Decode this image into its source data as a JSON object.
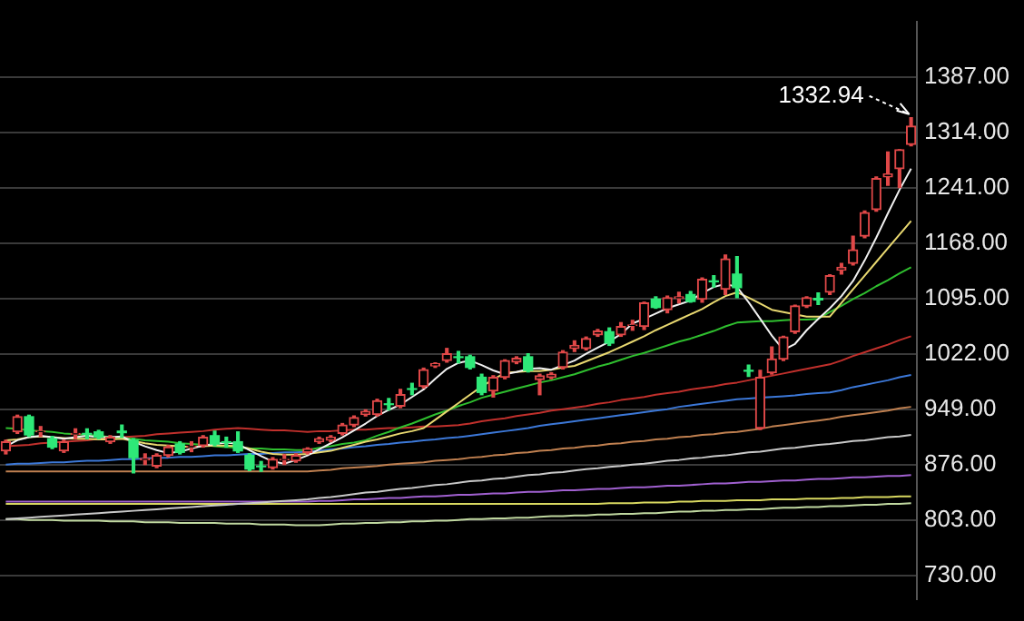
{
  "chart_data": {
    "type": "candlestick",
    "categories": [
      null,
      null,
      null,
      null,
      null,
      null,
      null,
      null,
      null,
      null,
      null,
      null,
      null,
      null,
      null,
      null,
      null,
      null,
      null,
      null,
      null,
      null,
      null,
      null,
      null,
      null,
      null,
      null,
      null,
      null,
      null,
      null,
      null,
      null,
      null,
      null,
      null,
      null,
      null,
      null,
      null,
      null,
      null,
      null,
      null,
      null,
      null,
      null,
      null,
      null,
      null,
      null,
      null,
      null,
      null,
      null,
      null,
      null,
      null,
      null,
      null,
      null,
      null,
      null,
      null,
      null,
      null,
      null,
      null,
      null,
      null,
      null,
      null,
      null,
      null,
      null,
      null,
      null,
      null
    ],
    "ohlc": [
      [
        894,
        908,
        890,
        906
      ],
      [
        919,
        941,
        917,
        939
      ],
      [
        939,
        941,
        913,
        915
      ],
      [
        919,
        926,
        913,
        920
      ],
      [
        910,
        913,
        897,
        899
      ],
      [
        894,
        908,
        892,
        906
      ],
      [
        916,
        923,
        910,
        917
      ],
      [
        917,
        923,
        910,
        916
      ],
      [
        919,
        921,
        910,
        912
      ],
      [
        906,
        914,
        904,
        912
      ],
      [
        920,
        928,
        912,
        918
      ],
      [
        908,
        910,
        865,
        885
      ],
      [
        882,
        890,
        876,
        884
      ],
      [
        874,
        890,
        872,
        888
      ],
      [
        888,
        901,
        886,
        899
      ],
      [
        903,
        906,
        890,
        892
      ],
      [
        899,
        906,
        893,
        900
      ],
      [
        901,
        914,
        899,
        912
      ],
      [
        914,
        920,
        901,
        903
      ],
      [
        906,
        912,
        899,
        905
      ],
      [
        906,
        919,
        892,
        894
      ],
      [
        888,
        890,
        868,
        870
      ],
      [
        874,
        880,
        867,
        873
      ],
      [
        872,
        885,
        870,
        883
      ],
      [
        882,
        889,
        876,
        883
      ],
      [
        881,
        890,
        879,
        888
      ],
      [
        892,
        898,
        890,
        897
      ],
      [
        906,
        912,
        904,
        910
      ],
      [
        908,
        914,
        906,
        912
      ],
      [
        917,
        930,
        915,
        928
      ],
      [
        928,
        940,
        926,
        938
      ],
      [
        942,
        948,
        940,
        946
      ],
      [
        942,
        962,
        940,
        960
      ],
      [
        956,
        963,
        948,
        955
      ],
      [
        953,
        975,
        951,
        968
      ],
      [
        976,
        983,
        968,
        975
      ],
      [
        979,
        1003,
        977,
        1001
      ],
      [
        1006,
        1010,
        1004,
        1009
      ],
      [
        1013,
        1029,
        1011,
        1022
      ],
      [
        1018,
        1025,
        1010,
        1017
      ],
      [
        1018,
        1020,
        1002,
        1004
      ],
      [
        991,
        995,
        968,
        971
      ],
      [
        973,
        993,
        965,
        991
      ],
      [
        991,
        1014,
        989,
        1013
      ],
      [
        1011,
        1018,
        1009,
        1016
      ],
      [
        1018,
        1022,
        998,
        1000
      ],
      [
        988,
        995,
        968,
        993
      ],
      [
        991,
        997,
        989,
        995
      ],
      [
        1004,
        1026,
        1002,
        1024
      ],
      [
        1029,
        1039,
        1025,
        1033
      ],
      [
        1029,
        1044,
        1027,
        1042
      ],
      [
        1047,
        1054,
        1045,
        1052
      ],
      [
        1051,
        1056,
        1033,
        1036
      ],
      [
        1047,
        1063,
        1045,
        1058
      ],
      [
        1059,
        1066,
        1053,
        1060
      ],
      [
        1058,
        1090,
        1054,
        1089
      ],
      [
        1094,
        1097,
        1082,
        1083
      ],
      [
        1080,
        1098,
        1076,
        1096
      ],
      [
        1095,
        1103,
        1089,
        1097
      ],
      [
        1100,
        1104,
        1090,
        1091
      ],
      [
        1094,
        1122,
        1090,
        1120
      ],
      [
        1118,
        1125,
        1110,
        1117
      ],
      [
        1107,
        1152,
        1100,
        1147
      ],
      [
        1127,
        1150,
        1096,
        1109
      ],
      [
        1000,
        1007,
        992,
        999
      ],
      [
        924,
        1000,
        922,
        991
      ],
      [
        997,
        1031,
        995,
        1015
      ],
      [
        1015,
        1045,
        1013,
        1044
      ],
      [
        1051,
        1086,
        1049,
        1085
      ],
      [
        1085,
        1097,
        1083,
        1096
      ],
      [
        1095,
        1102,
        1087,
        1093
      ],
      [
        1103,
        1126,
        1100,
        1125
      ],
      [
        1132,
        1141,
        1127,
        1136
      ],
      [
        1141,
        1177,
        1139,
        1159
      ],
      [
        1177,
        1210,
        1175,
        1208
      ],
      [
        1212,
        1255,
        1210,
        1253
      ],
      [
        1255,
        1288,
        1244,
        1259
      ],
      [
        1266,
        1291,
        1241,
        1291
      ],
      [
        1298,
        1332.94,
        1296,
        1322
      ]
    ],
    "colors": [
      "#e04848",
      "#e04848",
      "#2ee878",
      "#e04848",
      "#2ee878",
      "#e04848",
      "#e04848",
      "#2ee878",
      "#2ee878",
      "#e04848",
      "#2ee878",
      "#2ee878",
      "#e04848",
      "#e04848",
      "#e04848",
      "#2ee878",
      "#e04848",
      "#e04848",
      "#2ee878",
      "#2ee878",
      "#2ee878",
      "#2ee878",
      "#2ee878",
      "#e04848",
      "#e04848",
      "#e04848",
      "#e04848",
      "#e04848",
      "#e04848",
      "#e04848",
      "#e04848",
      "#e04848",
      "#e04848",
      "#2ee878",
      "#e04848",
      "#2ee878",
      "#e04848",
      "#e04848",
      "#e04848",
      "#2ee878",
      "#2ee878",
      "#2ee878",
      "#e04848",
      "#e04848",
      "#e04848",
      "#2ee878",
      "#e04848",
      "#e04848",
      "#e04848",
      "#e04848",
      "#e04848",
      "#e04848",
      "#2ee878",
      "#e04848",
      "#e04848",
      "#e04848",
      "#2ee878",
      "#e04848",
      "#e04848",
      "#2ee878",
      "#e04848",
      "#2ee878",
      "#e04848",
      "#2ee878",
      "#2ee878",
      "#e04848",
      "#e04848",
      "#e04848",
      "#e04848",
      "#e04848",
      "#2ee878",
      "#e04848",
      "#e04848",
      "#e04848",
      "#e04848",
      "#e04848",
      "#e04848",
      "#e04848",
      "#e04848"
    ],
    "series": [
      {
        "type": "line",
        "color": "#f0f0f0",
        "values": [
          900,
          908,
          912,
          914,
          912,
          910,
          912,
          914,
          912,
          912,
          913,
          906,
          900,
          895,
          891,
          893,
          897,
          901,
          903,
          905,
          903,
          895,
          887,
          880,
          877,
          882,
          888,
          896,
          904,
          912,
          921,
          930,
          940,
          948,
          955,
          965,
          975,
          989,
          1002,
          1010,
          1013,
          1007,
          1000,
          995,
          998,
          1002,
          1003,
          1001,
          1007,
          1013,
          1022,
          1030,
          1038,
          1048,
          1062,
          1068,
          1075,
          1082,
          1087,
          1092,
          1102,
          1110,
          1114,
          1110,
          1090,
          1068,
          1046,
          1027,
          1035,
          1053,
          1068,
          1082,
          1098,
          1118,
          1145,
          1175,
          1207,
          1238,
          1266
        ]
      },
      {
        "type": "line",
        "color": "#e8d870",
        "values": [
          908,
          909,
          912,
          913,
          912,
          911,
          910,
          910,
          909,
          909,
          910,
          907,
          904,
          902,
          901,
          900,
          899,
          900,
          901,
          901,
          900,
          897,
          893,
          890,
          889,
          889,
          890,
          892,
          894,
          898,
          902,
          906,
          909,
          913,
          917,
          920,
          924,
          935,
          946,
          957,
          968,
          979,
          988,
          997,
          998,
          999,
          999,
          1001,
          1004,
          1006,
          1012,
          1018,
          1024,
          1031,
          1038,
          1045,
          1053,
          1060,
          1067,
          1074,
          1081,
          1090,
          1098,
          1103,
          1096,
          1088,
          1080,
          1077,
          1074,
          1071,
          1071,
          1071,
          1089,
          1107,
          1125,
          1143,
          1161,
          1179,
          1197
        ]
      },
      {
        "type": "line",
        "color": "#2fbf2f",
        "values": [
          924,
          923,
          921,
          920,
          919,
          917,
          916,
          915,
          914,
          912,
          911,
          910,
          908,
          907,
          906,
          904,
          903,
          902,
          900,
          899,
          898,
          897,
          897,
          896,
          896,
          895,
          895,
          898,
          900,
          903,
          905,
          908,
          914,
          919,
          925,
          930,
          936,
          942,
          947,
          953,
          958,
          964,
          968,
          972,
          976,
          980,
          984,
          987,
          991,
          995,
          1000,
          1005,
          1009,
          1014,
          1019,
          1023,
          1028,
          1033,
          1038,
          1042,
          1047,
          1052,
          1058,
          1063,
          1064,
          1065,
          1065,
          1066,
          1067,
          1067,
          1068,
          1077,
          1085,
          1094,
          1102,
          1111,
          1119,
          1128,
          1136
        ]
      },
      {
        "type": "line",
        "color": "#c0302c",
        "values": [
          900,
          901,
          902,
          904,
          905,
          906,
          907,
          908,
          910,
          911,
          912,
          913,
          914,
          916,
          917,
          918,
          919,
          920,
          922,
          923,
          924,
          923,
          922,
          921,
          921,
          920,
          919,
          920,
          920,
          921,
          922,
          922,
          923,
          924,
          924,
          925,
          926,
          926,
          927,
          928,
          930,
          933,
          935,
          937,
          940,
          942,
          944,
          947,
          949,
          951,
          953,
          956,
          958,
          961,
          963,
          965,
          968,
          970,
          972,
          975,
          977,
          979,
          982,
          984,
          987,
          990,
          993,
          996,
          999,
          1002,
          1005,
          1008,
          1013,
          1019,
          1024,
          1029,
          1034,
          1040,
          1045
        ]
      },
      {
        "type": "line",
        "color": "#3c78d8",
        "values": [
          876,
          877,
          877,
          878,
          879,
          879,
          880,
          881,
          881,
          882,
          883,
          883,
          884,
          885,
          885,
          886,
          886,
          887,
          888,
          888,
          889,
          890,
          890,
          891,
          892,
          892,
          893,
          894,
          896,
          897,
          899,
          900,
          902,
          903,
          905,
          906,
          908,
          909,
          911,
          912,
          914,
          916,
          918,
          920,
          922,
          924,
          927,
          929,
          931,
          933,
          935,
          937,
          939,
          941,
          943,
          945,
          947,
          949,
          952,
          954,
          956,
          958,
          960,
          962,
          963,
          964,
          965,
          966,
          967,
          969,
          970,
          971,
          974,
          978,
          981,
          984,
          987,
          991,
          994
        ]
      },
      {
        "type": "line",
        "color": "#c08050",
        "values": [
          867,
          867,
          867,
          867,
          867,
          867,
          867,
          867,
          867,
          867,
          867,
          867,
          867,
          867,
          867,
          867,
          867,
          867,
          867,
          867,
          867,
          867,
          867,
          867,
          867,
          867,
          867,
          868,
          869,
          871,
          872,
          873,
          874,
          876,
          877,
          878,
          879,
          881,
          882,
          883,
          885,
          886,
          888,
          889,
          891,
          892,
          894,
          895,
          897,
          898,
          900,
          901,
          903,
          904,
          906,
          907,
          909,
          910,
          912,
          913,
          915,
          916,
          918,
          919,
          921,
          923,
          926,
          928,
          930,
          932,
          934,
          936,
          939,
          941,
          943,
          945,
          947,
          950,
          952
        ]
      },
      {
        "type": "line",
        "color": "#c8c8c8",
        "values": [
          804,
          805,
          806,
          807,
          808,
          809,
          810,
          811,
          812,
          813,
          814,
          815,
          816,
          817,
          818,
          819,
          820,
          821,
          822,
          823,
          824,
          825,
          826,
          827,
          828,
          829,
          830,
          832,
          833,
          835,
          837,
          839,
          840,
          842,
          844,
          845,
          847,
          849,
          850,
          852,
          854,
          855,
          857,
          858,
          860,
          862,
          863,
          865,
          866,
          868,
          870,
          871,
          873,
          874,
          876,
          877,
          879,
          881,
          882,
          884,
          885,
          887,
          888,
          890,
          892,
          893,
          895,
          897,
          898,
          900,
          902,
          903,
          905,
          907,
          908,
          910,
          912,
          913,
          915
        ]
      },
      {
        "type": "line",
        "color": "#a060d0",
        "values": [
          827,
          827,
          827,
          827,
          827,
          827,
          827,
          827,
          827,
          827,
          827,
          827,
          827,
          827,
          827,
          827,
          827,
          827,
          827,
          827,
          827,
          827,
          827,
          827,
          827,
          827,
          827,
          828,
          828,
          829,
          830,
          830,
          831,
          832,
          832,
          833,
          834,
          834,
          835,
          836,
          836,
          837,
          838,
          838,
          839,
          840,
          840,
          841,
          842,
          842,
          843,
          844,
          844,
          845,
          846,
          846,
          847,
          848,
          848,
          849,
          850,
          851,
          851,
          852,
          853,
          853,
          854,
          855,
          855,
          856,
          857,
          857,
          858,
          859,
          859,
          860,
          861,
          861,
          862
        ]
      },
      {
        "type": "line",
        "color": "#d8d860",
        "values": [
          824,
          824,
          824,
          824,
          824,
          824,
          824,
          824,
          824,
          824,
          824,
          824,
          824,
          824,
          824,
          824,
          824,
          824,
          824,
          824,
          824,
          824,
          824,
          824,
          824,
          824,
          824,
          824,
          824,
          824,
          824,
          824,
          824,
          824,
          824,
          824,
          824,
          824,
          824,
          824,
          824,
          824,
          824,
          824,
          824,
          824,
          824,
          824,
          824,
          824,
          824,
          824,
          825,
          825,
          825,
          826,
          826,
          826,
          827,
          827,
          828,
          828,
          828,
          829,
          829,
          829,
          830,
          830,
          830,
          831,
          831,
          831,
          832,
          832,
          833,
          833,
          833,
          834,
          834
        ]
      },
      {
        "type": "line",
        "color": "#c0d8a0",
        "values": [
          804,
          804,
          803,
          803,
          803,
          802,
          802,
          802,
          802,
          801,
          801,
          801,
          800,
          800,
          800,
          799,
          799,
          799,
          799,
          798,
          798,
          798,
          797,
          797,
          797,
          796,
          796,
          796,
          797,
          798,
          798,
          799,
          799,
          800,
          800,
          801,
          801,
          802,
          802,
          803,
          804,
          804,
          805,
          805,
          806,
          806,
          807,
          808,
          808,
          809,
          809,
          810,
          810,
          811,
          811,
          812,
          812,
          813,
          814,
          814,
          815,
          815,
          816,
          816,
          817,
          817,
          818,
          819,
          819,
          820,
          820,
          821,
          821,
          822,
          823,
          823,
          824,
          824,
          825
        ]
      }
    ],
    "ylim": [
      698,
      1460
    ],
    "yticks": [
      {
        "value": 730,
        "label": "730.00"
      },
      {
        "value": 803,
        "label": "803.00"
      },
      {
        "value": 876,
        "label": "876.00"
      },
      {
        "value": 949,
        "label": "949.00"
      },
      {
        "value": 1022,
        "label": "1022.00"
      },
      {
        "value": 1095,
        "label": "1095.00"
      },
      {
        "value": 1168,
        "label": "1168.00"
      },
      {
        "value": 1241,
        "label": "1241.00"
      },
      {
        "value": 1314,
        "label": "1314.00"
      },
      {
        "value": 1387,
        "label": "1387.00"
      }
    ],
    "grid": "y",
    "annotations": [
      "1332.94"
    ]
  }
}
